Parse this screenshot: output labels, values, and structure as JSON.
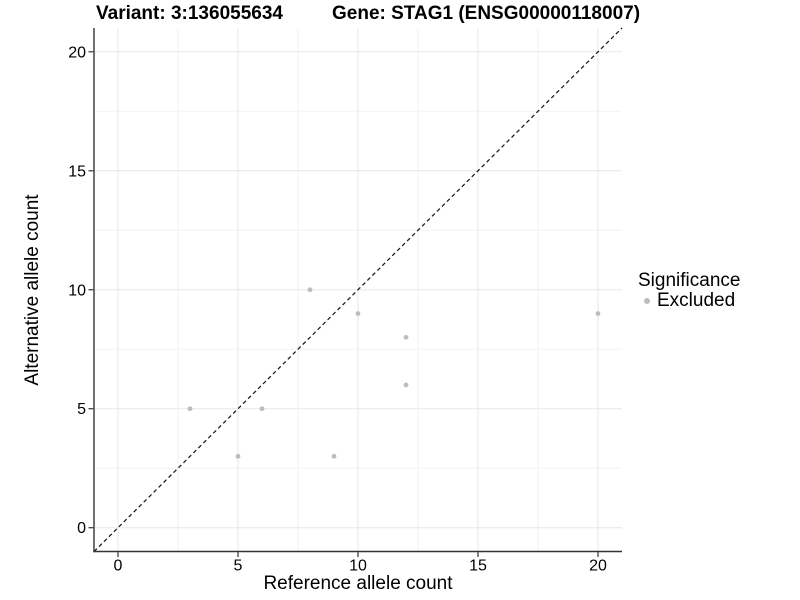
{
  "titles": {
    "variant": "Variant: 3:136055634",
    "gene": "Gene: STAG1 (ENSG00000118007)"
  },
  "axes": {
    "x_label": "Reference allele count",
    "y_label": "Alternative allele count"
  },
  "legend": {
    "title": "Significance",
    "items": [
      {
        "label": "Excluded",
        "color": "#bdbdbd"
      }
    ]
  },
  "chart_data": {
    "type": "scatter",
    "title_left": "Variant: 3:136055634",
    "title_right": "Gene: STAG1 (ENSG00000118007)",
    "xlabel": "Reference allele count",
    "ylabel": "Alternative allele count",
    "xlim": [
      -1,
      21
    ],
    "ylim": [
      -1,
      21
    ],
    "xticks": [
      0,
      5,
      10,
      15,
      20
    ],
    "yticks": [
      0,
      5,
      10,
      15,
      20
    ],
    "grid": true,
    "legend_position": "right",
    "series": [
      {
        "name": "Excluded",
        "color": "#bdbdbd",
        "points": [
          [
            3,
            5
          ],
          [
            5,
            3
          ],
          [
            6,
            5
          ],
          [
            8,
            10
          ],
          [
            9,
            3
          ],
          [
            10,
            9
          ],
          [
            12,
            6
          ],
          [
            12,
            8
          ],
          [
            20,
            9
          ]
        ]
      }
    ],
    "identity_line": {
      "slope": 1,
      "intercept": 0,
      "style": "dashed",
      "color": "#1a1a1a"
    },
    "colors": {
      "point": "#bdbdbd",
      "grid_major": "#e7e7e7",
      "grid_minor": "#f2f2f2",
      "axis_line": "#333333",
      "tick": "#333333",
      "text": "#000000"
    }
  }
}
